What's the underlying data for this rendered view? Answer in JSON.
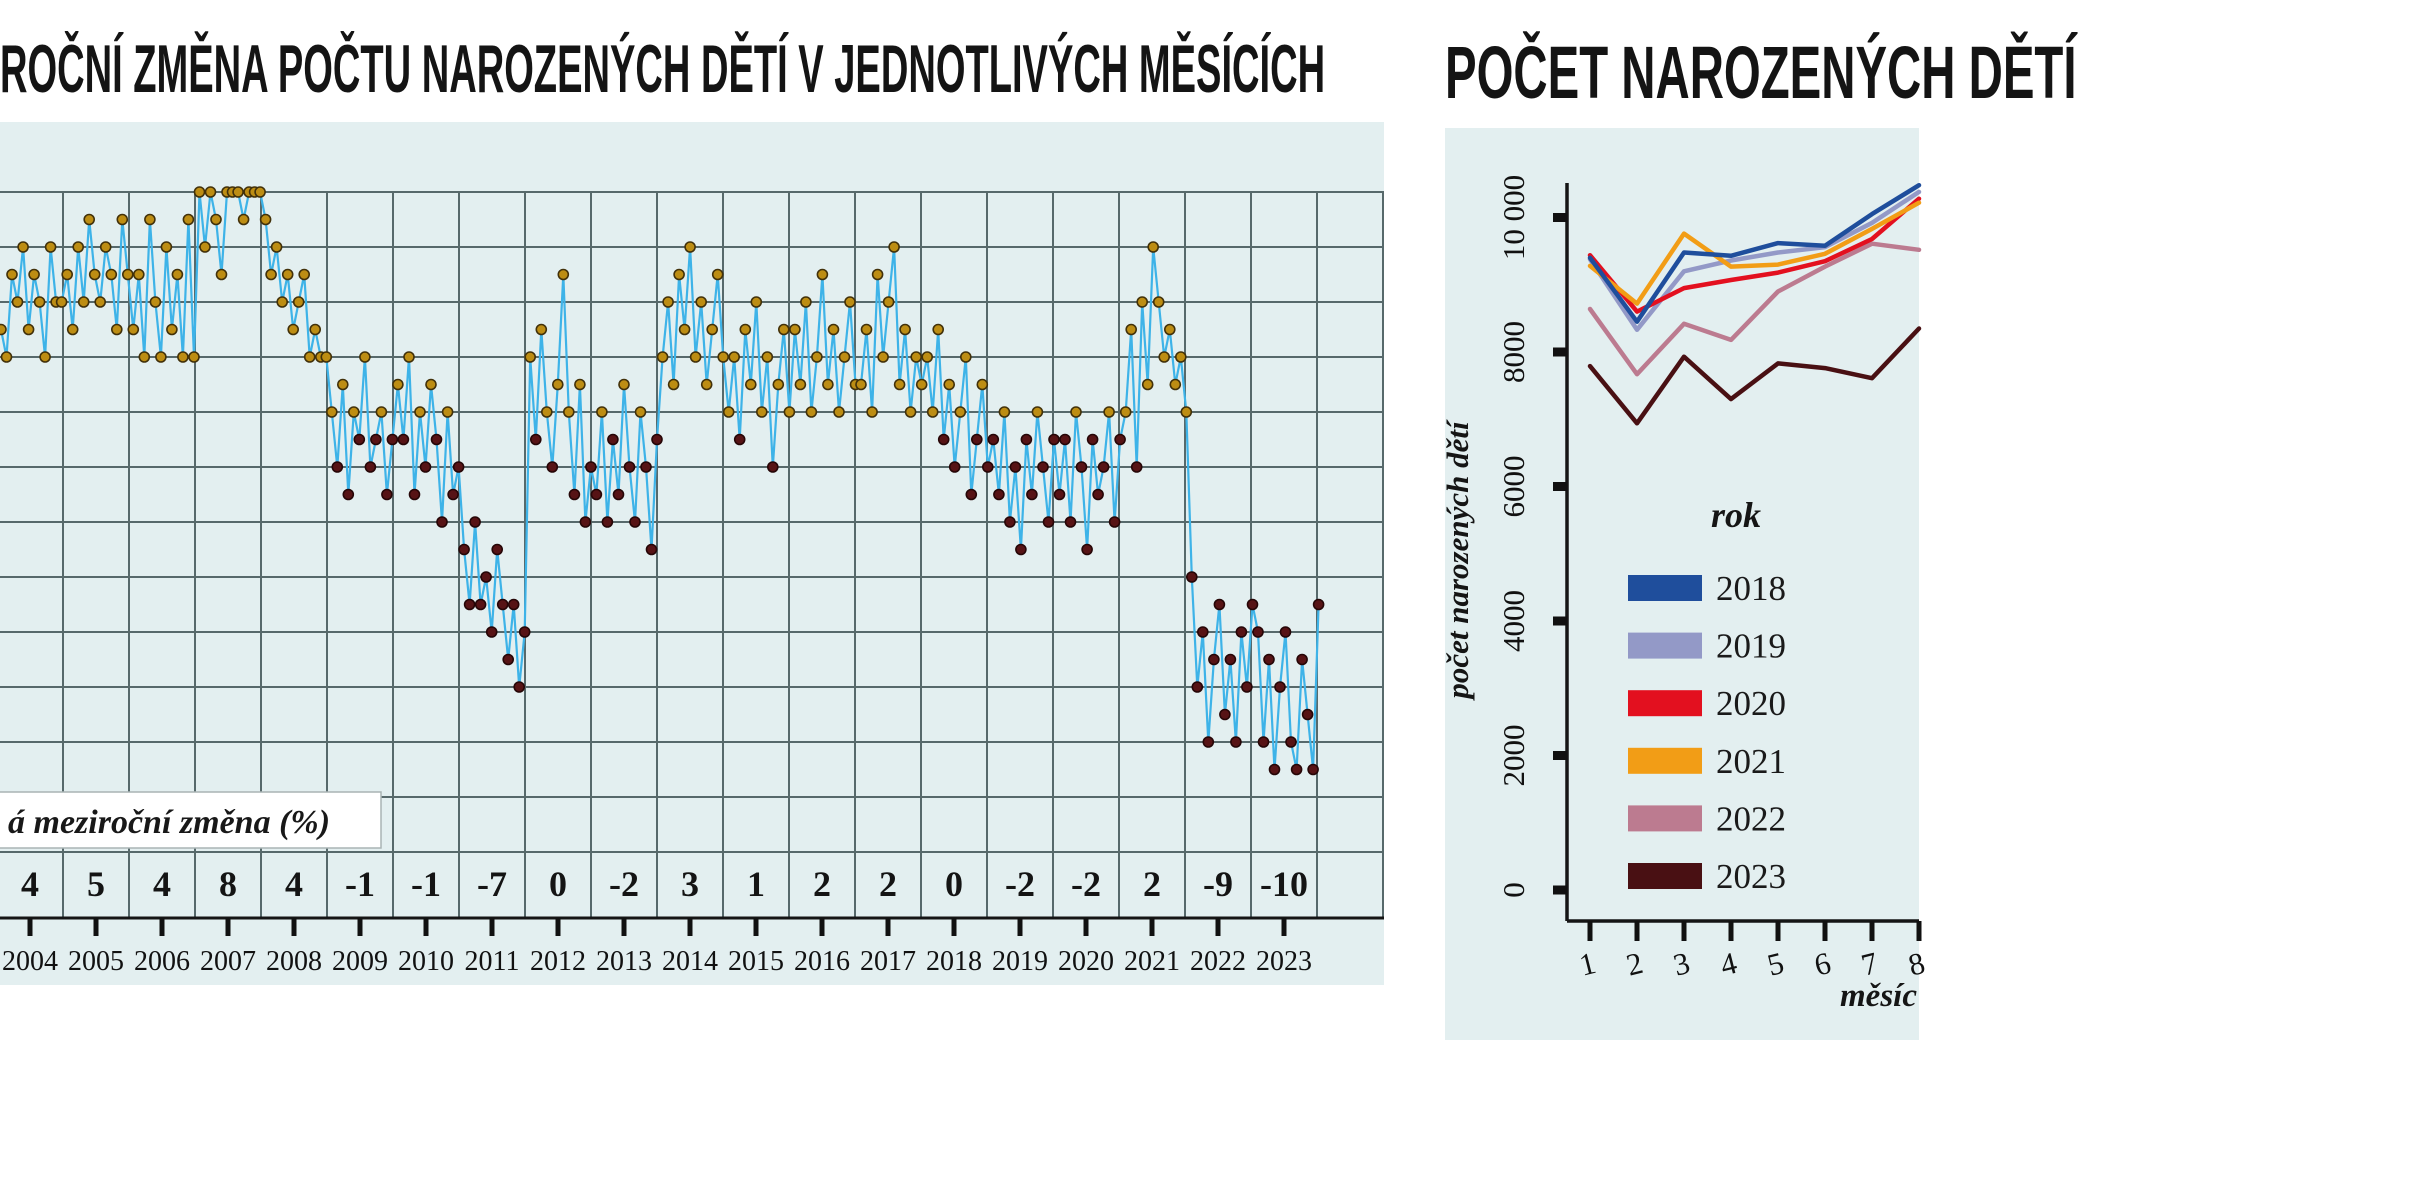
{
  "page": {
    "background": "#ffffff",
    "plot_background": "#e3eff0",
    "grid_color": "#57696b"
  },
  "left_chart": {
    "title": "ROČNÍ ZMĚNA POČTU NAROZENÝCH DĚTÍ V JEDNOTLIVÝCH MĚSÍCÍCH",
    "avg_row_label": "á meziroční změna (%)"
  },
  "right_chart": {
    "title": "POČET NAROZENÝCH DĚTÍ",
    "ylabel": "počet narozených dětí",
    "xlabel": "měsíc",
    "legend_title": "rok"
  },
  "chart_data": [
    {
      "type": "scatter",
      "title": "ROČNÍ ZMĚNA POČTU NAROZENÝCH DĚTÍ V JEDNOTLIVÝCH MĚSÍCÍCH",
      "subtitle_row_label": "á meziroční změna (%)",
      "unit": "%",
      "grid": true,
      "ylim": [
        -13.7,
        8.2
      ],
      "years": [
        "2004",
        "2005",
        "2006",
        "2007",
        "2008",
        "2009",
        "2010",
        "2011",
        "2012",
        "2013",
        "2014",
        "2015",
        "2016",
        "2017",
        "2018",
        "2019",
        "2020",
        "2021",
        "2022",
        "2023"
      ],
      "annual_avg_pct": [
        4,
        5,
        4,
        8,
        4,
        -1,
        -1,
        -7,
        0,
        -2,
        3,
        1,
        2,
        2,
        0,
        -2,
        -2,
        2,
        -9,
        -10
      ],
      "monthly_pct_by_year": {
        "2004": [
          3,
          2,
          5,
          4,
          6,
          3,
          5,
          4,
          2,
          6,
          4,
          4
        ],
        "2005": [
          5,
          3,
          6,
          4,
          7,
          5,
          4,
          6,
          5,
          3,
          7,
          5
        ],
        "2006": [
          3,
          5,
          2,
          7,
          4,
          2,
          6,
          3,
          5,
          2,
          7,
          2
        ],
        "2007": [
          8,
          6,
          8,
          7,
          5,
          8,
          8,
          8,
          7,
          8,
          8,
          8
        ],
        "2008": [
          7,
          5,
          6,
          4,
          5,
          3,
          4,
          5,
          2,
          3,
          2,
          2
        ],
        "2009": [
          0,
          -2,
          1,
          -3,
          0,
          -1,
          2,
          -2,
          -1,
          0,
          -3,
          -1
        ],
        "2010": [
          1,
          -1,
          2,
          -3,
          0,
          -2,
          1,
          -1,
          -4,
          0,
          -3,
          -2
        ],
        "2011": [
          -5,
          -7,
          -4,
          -7,
          -6,
          -8,
          -5,
          -7,
          -9,
          -7,
          -10,
          -8
        ],
        "2012": [
          2,
          -1,
          3,
          0,
          -2,
          1,
          5,
          0,
          -3,
          1,
          -4,
          -2
        ],
        "2013": [
          -3,
          0,
          -4,
          -1,
          -3,
          1,
          -2,
          -4,
          0,
          -2,
          -5,
          -1
        ],
        "2014": [
          2,
          4,
          1,
          5,
          3,
          6,
          2,
          4,
          1,
          3,
          5,
          2
        ],
        "2015": [
          0,
          2,
          -1,
          3,
          1,
          4,
          0,
          2,
          -2,
          1,
          3,
          0
        ],
        "2016": [
          3,
          1,
          4,
          0,
          2,
          5,
          1,
          3,
          0,
          2,
          4,
          1
        ],
        "2017": [
          1,
          3,
          0,
          5,
          2,
          4,
          6,
          1,
          3,
          0,
          2,
          1
        ],
        "2018": [
          2,
          0,
          3,
          -1,
          1,
          -2,
          0,
          2,
          -3,
          -1,
          1,
          -2
        ],
        "2019": [
          -1,
          -3,
          0,
          -4,
          -2,
          -5,
          -1,
          -3,
          0,
          -2,
          -4,
          -1
        ],
        "2020": [
          -3,
          -1,
          -4,
          0,
          -2,
          -5,
          -1,
          -3,
          -2,
          0,
          -4,
          -1
        ],
        "2021": [
          0,
          3,
          -2,
          4,
          1,
          6,
          4,
          2,
          3,
          1,
          2,
          0
        ],
        "2022": [
          -6,
          -10,
          -8,
          -12,
          -9,
          -7,
          -11,
          -9,
          -12,
          -8,
          -10,
          -7
        ],
        "2023": [
          -8,
          -12,
          -9,
          -13,
          -10,
          -8,
          -12,
          -13,
          -9,
          -11,
          -13,
          -7
        ]
      },
      "line_color": "#3eb3e8",
      "point_color_positive": "#bd8d13",
      "point_edge_positive": "#42310a",
      "point_color_negative": "#571315",
      "point_edge_negative": "#260607"
    },
    {
      "type": "line",
      "title": "POČET NAROZENÝCH DĚTÍ",
      "xlabel": "měsíc",
      "ylabel": "počet narozených dětí",
      "legend_title": "rok",
      "legend_position": "center-bottom",
      "x": [
        "1",
        "2",
        "3",
        "4",
        "5",
        "6",
        "7",
        "8"
      ],
      "yticks": [
        "0",
        "2000",
        "4000",
        "6000",
        "8000",
        "10 000"
      ],
      "ytick_values": [
        0,
        2000,
        4000,
        6000,
        8000,
        10000
      ],
      "ylim": [
        0,
        10500
      ],
      "grid": false,
      "series": [
        {
          "name": "2018",
          "color": "#1f4e9c",
          "values": [
            9400,
            8450,
            9480,
            9430,
            9620,
            9580,
            10050,
            10480
          ]
        },
        {
          "name": "2019",
          "color": "#9399c7",
          "values": [
            9380,
            8330,
            9200,
            9360,
            9480,
            9560,
            9920,
            10380
          ]
        },
        {
          "name": "2020",
          "color": "#e3101f",
          "values": [
            9440,
            8600,
            8950,
            9070,
            9180,
            9350,
            9680,
            10280
          ]
        },
        {
          "name": "2021",
          "color": "#f29d16",
          "values": [
            9280,
            8720,
            9760,
            9270,
            9300,
            9460,
            9830,
            10220
          ]
        },
        {
          "name": "2022",
          "color": "#bc7b90",
          "values": [
            8640,
            7670,
            8420,
            8180,
            8900,
            9270,
            9610,
            9520
          ]
        },
        {
          "name": "2023",
          "color": "#491013",
          "values": [
            7790,
            6940,
            7930,
            7300,
            7830,
            7760,
            7610,
            8350
          ]
        }
      ]
    }
  ]
}
